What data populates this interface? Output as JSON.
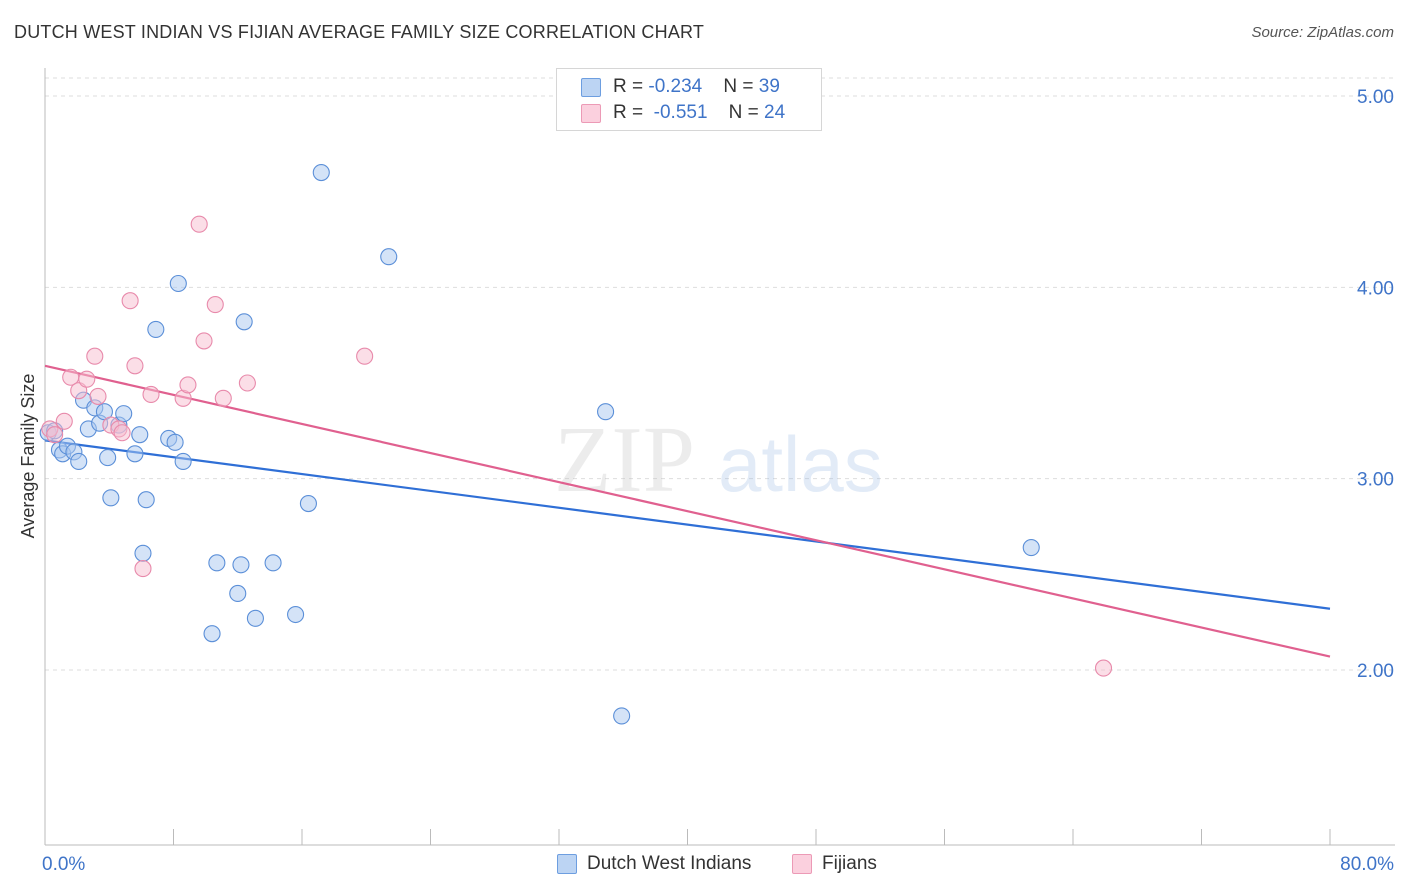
{
  "title": "DUTCH WEST INDIAN VS FIJIAN AVERAGE FAMILY SIZE CORRELATION CHART",
  "source": "Source: ZipAtlas.com",
  "watermark": {
    "part1": "ZIP",
    "part2": "atlas"
  },
  "legend": {
    "rows": [
      {
        "r_label": "R = ",
        "r_value": "-0.234",
        "n_label": "N = ",
        "n_value": "39"
      },
      {
        "r_label": "R = ",
        "r_value": "-0.551",
        "n_label": "N = ",
        "n_value": "24"
      }
    ]
  },
  "bottom_legend": [
    "Dutch West Indians",
    "Fijians"
  ],
  "colors": {
    "blue_fill": "#aac8f0",
    "blue_stroke": "#5b8fd8",
    "blue_line": "#2f6fd6",
    "pink_fill": "#f7bdd0",
    "pink_stroke": "#e88aab",
    "pink_line": "#e0608f",
    "axis_text": "#3f74c8",
    "grid": "#dddddd"
  },
  "chart_data": {
    "type": "scatter",
    "title": "DUTCH WEST INDIAN VS FIJIAN AVERAGE FAMILY SIZE CORRELATION CHART",
    "xlabel": "",
    "ylabel": "Average Family Size",
    "xlim": [
      0,
      80
    ],
    "ylim": [
      1.0,
      5.15
    ],
    "x_tick_labels": [
      "0.0%",
      "80.0%"
    ],
    "y_ticks": [
      2.0,
      3.0,
      4.0,
      5.0
    ],
    "y_tick_labels": [
      "2.00",
      "3.00",
      "4.00",
      "5.00"
    ],
    "series": [
      {
        "name": "Dutch West Indians",
        "r": -0.234,
        "n": 39,
        "trend": {
          "x": [
            0,
            80
          ],
          "y": [
            3.2,
            2.32
          ]
        },
        "points": [
          [
            0.2,
            3.24
          ],
          [
            0.6,
            3.25
          ],
          [
            0.9,
            3.15
          ],
          [
            1.1,
            3.13
          ],
          [
            1.4,
            3.17
          ],
          [
            1.8,
            3.14
          ],
          [
            2.1,
            3.09
          ],
          [
            2.4,
            3.41
          ],
          [
            2.7,
            3.26
          ],
          [
            3.1,
            3.37
          ],
          [
            3.4,
            3.29
          ],
          [
            3.7,
            3.35
          ],
          [
            3.9,
            3.11
          ],
          [
            4.1,
            2.9
          ],
          [
            4.6,
            3.28
          ],
          [
            4.9,
            3.34
          ],
          [
            5.6,
            3.13
          ],
          [
            5.9,
            3.23
          ],
          [
            6.1,
            2.61
          ],
          [
            6.3,
            2.89
          ],
          [
            6.9,
            3.78
          ],
          [
            7.7,
            3.21
          ],
          [
            8.1,
            3.19
          ],
          [
            8.3,
            4.02
          ],
          [
            8.6,
            3.09
          ],
          [
            10.4,
            2.19
          ],
          [
            10.7,
            2.56
          ],
          [
            12.0,
            2.4
          ],
          [
            12.2,
            2.55
          ],
          [
            12.4,
            3.82
          ],
          [
            13.1,
            2.27
          ],
          [
            14.2,
            2.56
          ],
          [
            15.6,
            2.29
          ],
          [
            16.4,
            2.87
          ],
          [
            17.2,
            4.6
          ],
          [
            21.4,
            4.16
          ],
          [
            34.9,
            3.35
          ],
          [
            35.9,
            1.76
          ],
          [
            61.4,
            2.64
          ]
        ]
      },
      {
        "name": "Fijians",
        "r": -0.551,
        "n": 24,
        "trend": {
          "x": [
            0,
            80
          ],
          "y": [
            3.59,
            2.07
          ]
        },
        "points": [
          [
            0.3,
            3.26
          ],
          [
            0.6,
            3.23
          ],
          [
            1.2,
            3.3
          ],
          [
            1.6,
            3.53
          ],
          [
            2.1,
            3.46
          ],
          [
            2.6,
            3.52
          ],
          [
            3.1,
            3.64
          ],
          [
            3.3,
            3.43
          ],
          [
            4.1,
            3.28
          ],
          [
            4.6,
            3.26
          ],
          [
            4.8,
            3.24
          ],
          [
            5.3,
            3.93
          ],
          [
            5.6,
            3.59
          ],
          [
            6.1,
            2.53
          ],
          [
            6.6,
            3.44
          ],
          [
            8.6,
            3.42
          ],
          [
            8.9,
            3.49
          ],
          [
            9.6,
            4.33
          ],
          [
            9.9,
            3.72
          ],
          [
            10.6,
            3.91
          ],
          [
            11.1,
            3.42
          ],
          [
            12.6,
            3.5
          ],
          [
            19.9,
            3.64
          ],
          [
            65.9,
            2.01
          ]
        ]
      }
    ]
  }
}
